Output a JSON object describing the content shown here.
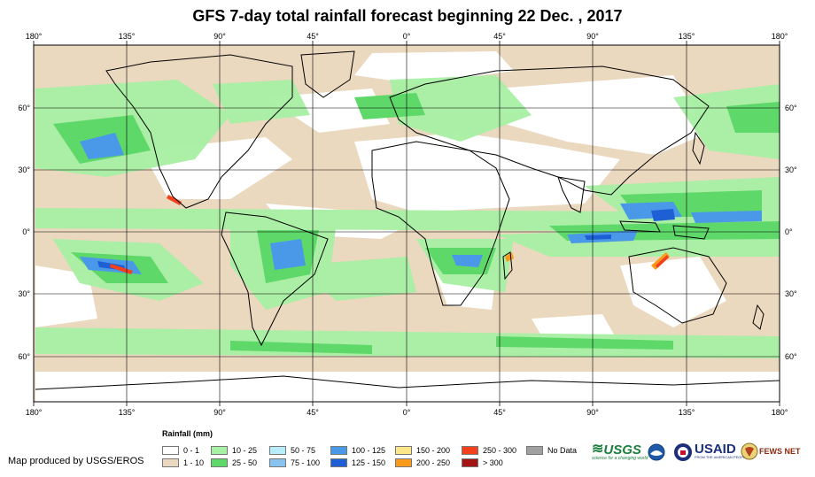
{
  "title": "GFS 7-day total rainfall forecast beginning 22 Dec. , 2017",
  "lon_labels": [
    "180°",
    "135°",
    "90°",
    "45°",
    "0°",
    "45°",
    "90°",
    "135°",
    "180°"
  ],
  "lat_labels": [
    "60°",
    "30°",
    "0°",
    "30°",
    "60°"
  ],
  "legend": {
    "title": "Rainfall (mm)",
    "items": [
      {
        "label": "0 - 1",
        "color": "#ffffff"
      },
      {
        "label": "1 - 10",
        "color": "#ead8bf"
      },
      {
        "label": "10 - 25",
        "color": "#a8f0a4"
      },
      {
        "label": "25 - 50",
        "color": "#5fd86a"
      },
      {
        "label": "50 - 75",
        "color": "#b7ecfb"
      },
      {
        "label": "75 - 100",
        "color": "#88c3f0"
      },
      {
        "label": "100 - 125",
        "color": "#4a98e8"
      },
      {
        "label": "125 - 150",
        "color": "#1e5fd6"
      },
      {
        "label": "150 - 200",
        "color": "#fde68a"
      },
      {
        "label": "200 - 250",
        "color": "#fb9a1a"
      },
      {
        "label": "250 - 300",
        "color": "#f4401c"
      },
      {
        "label": "> 300",
        "color": "#a31515"
      },
      {
        "label": "No Data",
        "color": "#a0a0a0"
      }
    ]
  },
  "credit": "Map produced by USGS/EROS",
  "logos": {
    "usgs": "USGS",
    "usgs_tagline": "science for a changing world",
    "usaid": "USAID",
    "usaid_tagline": "FROM THE AMERICAN PEOPLE",
    "fews": "FEWS NET"
  },
  "colors": {
    "background": "#ead8bf",
    "low": "#ffffff",
    "light": "#a8f0a4",
    "medium": "#5fd86a",
    "blue": "#4a98e8",
    "darkblue": "#1e5fd6",
    "orange": "#fb9a1a",
    "red": "#f4401c"
  }
}
